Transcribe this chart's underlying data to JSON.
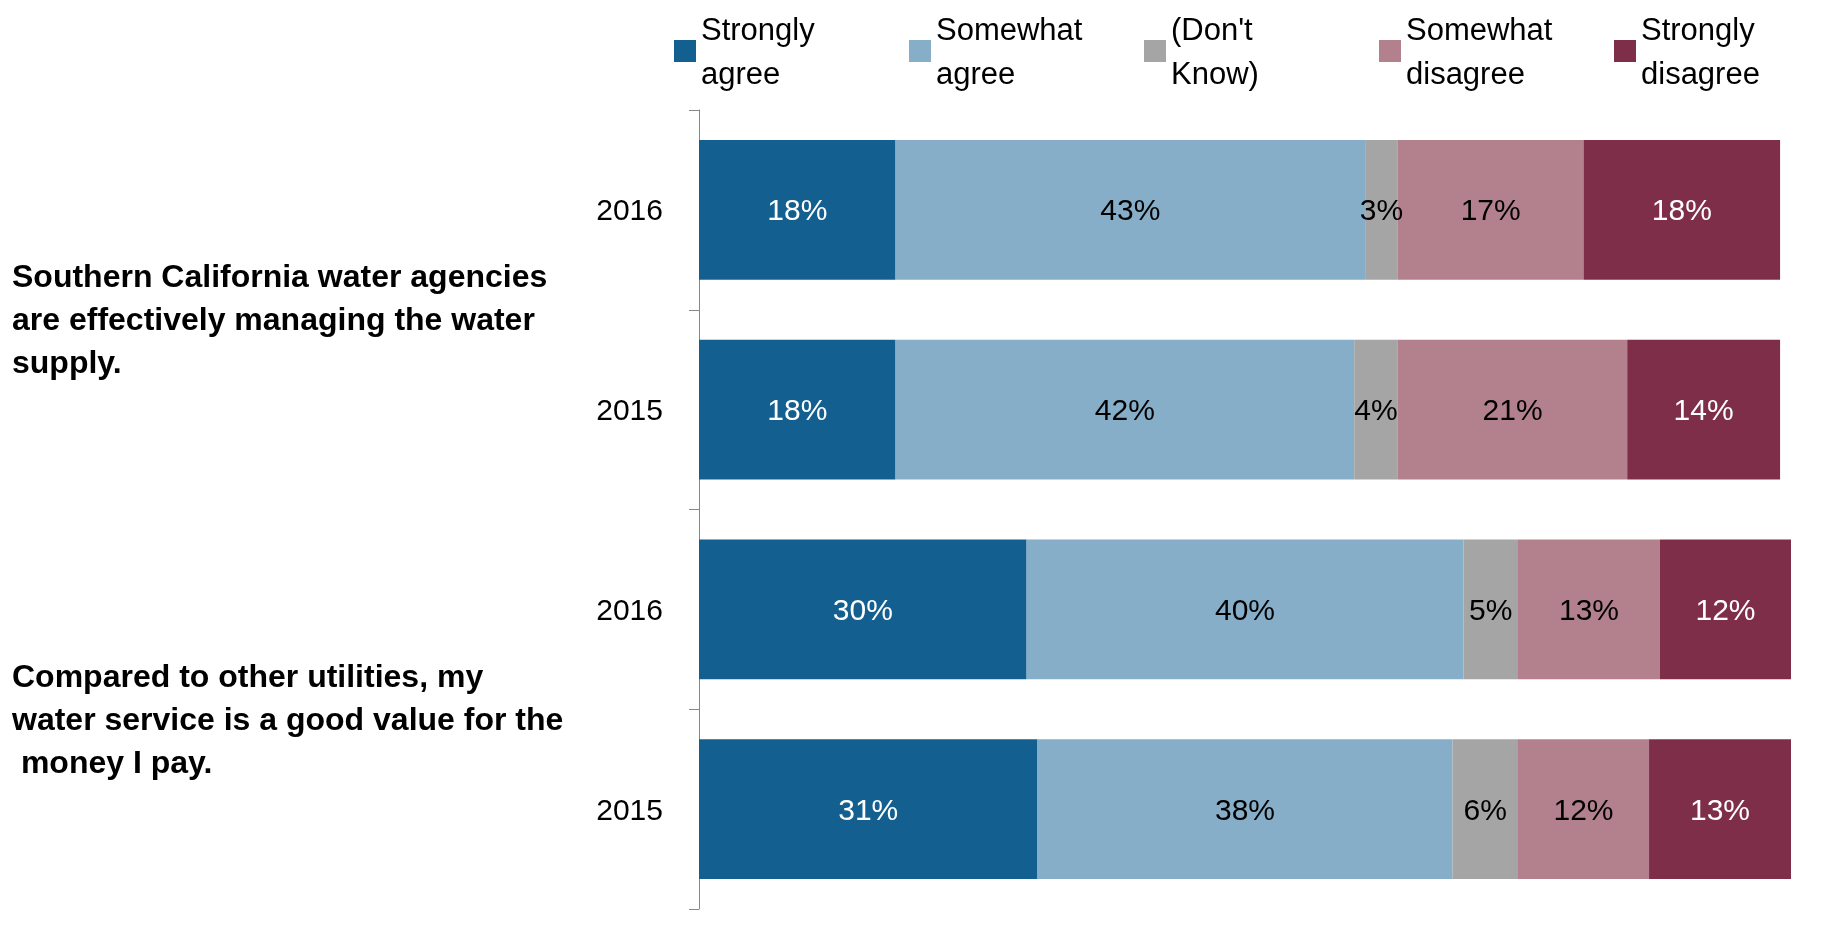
{
  "chart_data": {
    "type": "bar",
    "orientation": "horizontal",
    "stacked": true,
    "legend": "top right",
    "categories": [
      "2016",
      "2015",
      "2016",
      "2015"
    ],
    "annotations": [
      "Southern California water agencies are effectively managing the water supply.",
      "Compared to other utilities, my water service is a good value for the money I pay."
    ],
    "series": [
      {
        "name": "Strongly agree",
        "color": "#136090",
        "values": [
          18,
          18,
          30,
          31
        ],
        "value_labels": [
          "18%",
          "18%",
          "30%",
          "31%"
        ]
      },
      {
        "name": "Somewhat agree",
        "color": "#87aec8",
        "values": [
          43,
          42,
          40,
          38
        ],
        "value_labels": [
          "43%",
          "42%",
          "40%",
          "38%"
        ]
      },
      {
        "name": "(Don't Know)",
        "color": "#a5a5a5",
        "values": [
          3,
          4,
          5,
          6
        ],
        "value_labels": [
          "3%",
          "4%",
          "5%",
          "6%"
        ]
      },
      {
        "name": "Somewhat disagree",
        "color": "#b3818e",
        "values": [
          17,
          21,
          13,
          12
        ],
        "value_labels": [
          "17%",
          "21%",
          "13%",
          "12%"
        ]
      },
      {
        "name": "Strongly disagree",
        "color": "#7f2e4a",
        "values": [
          18,
          14,
          12,
          13
        ],
        "value_labels": [
          "18%",
          "14%",
          "12%",
          "13%"
        ]
      }
    ]
  }
}
